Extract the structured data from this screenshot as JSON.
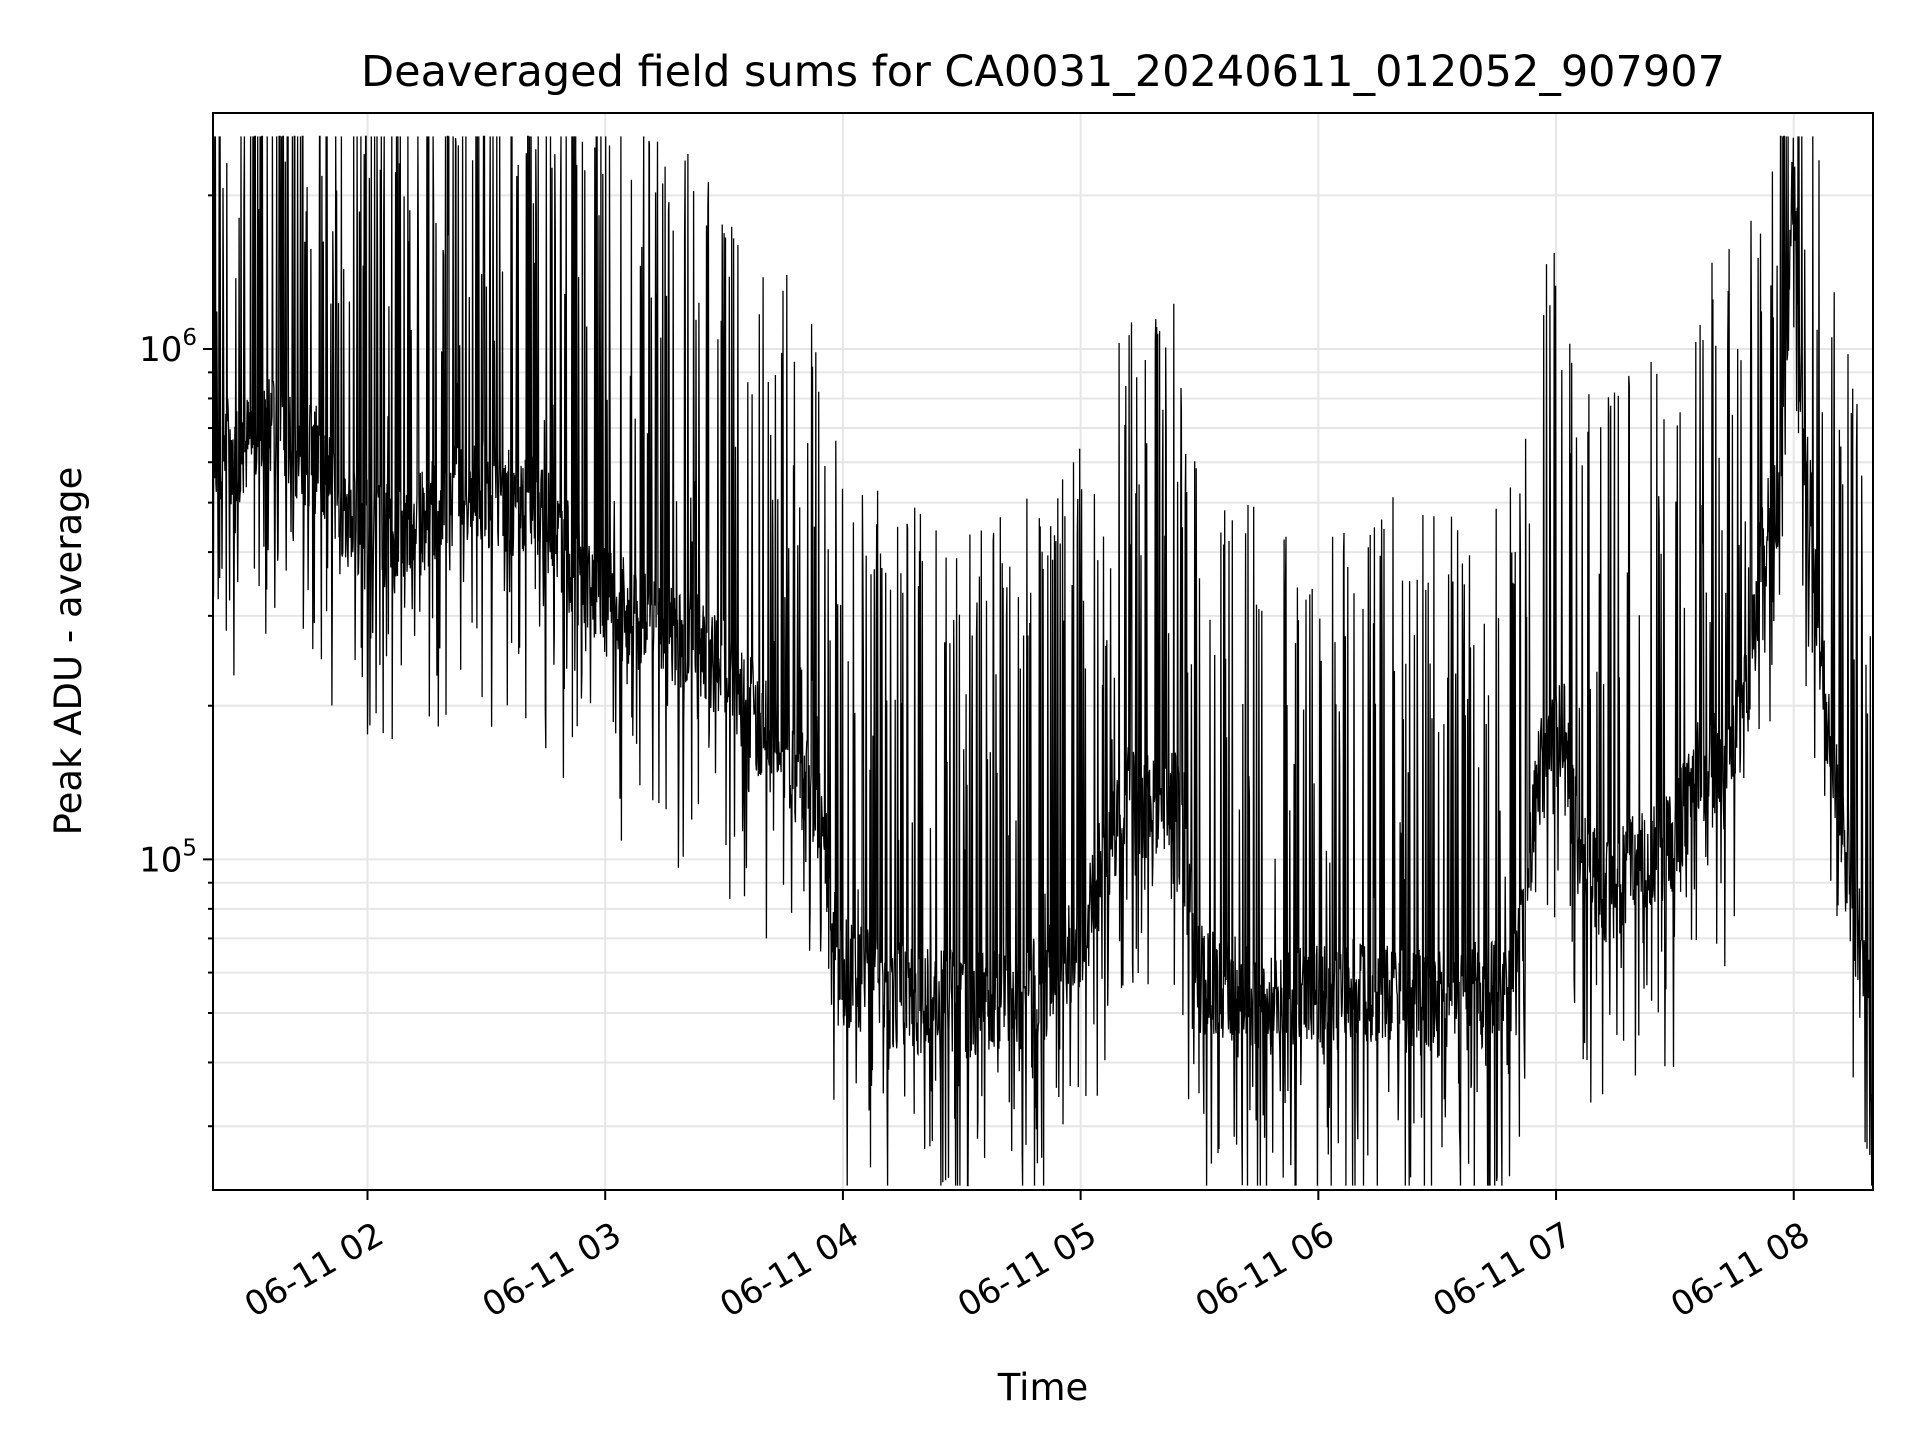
{
  "chart_data": {
    "type": "line",
    "title": "Deaveraged field sums for CA0031_20240611_012052_907907",
    "xlabel": "Time",
    "ylabel": "Peak ADU - average",
    "y_scale": "log",
    "ylim": [
      22500,
      2900000
    ],
    "x_range": [
      "06-11 01:21",
      "06-11 08:20"
    ],
    "x_ticks": [
      "06-11 02",
      "06-11 03",
      "06-11 04",
      "06-11 05",
      "06-11 06",
      "06-11 07",
      "06-11 08"
    ],
    "x_tick_times": [
      "06-11 02:00",
      "06-11 03:00",
      "06-11 04:00",
      "06-11 05:00",
      "06-11 06:00",
      "06-11 07:00",
      "06-11 08:00"
    ],
    "y_major_ticks": [
      {
        "value": 100000,
        "base": "10",
        "exp": "5"
      },
      {
        "value": 1000000,
        "base": "10",
        "exp": "6"
      }
    ],
    "grid": true,
    "line_color": "#000000",
    "grid_color": "#e6e6e6",
    "series": [
      {
        "points": [
          [
            "06-11 01:21",
            620000
          ],
          [
            "06-11 01:30",
            650000
          ],
          [
            "06-11 01:36",
            700000
          ],
          [
            "06-11 01:42",
            650000
          ],
          [
            "06-11 01:48",
            600000
          ],
          [
            "06-11 01:54",
            480000
          ],
          [
            "06-11 02:00",
            450000
          ],
          [
            "06-11 02:06",
            420000
          ],
          [
            "06-11 02:12",
            450000
          ],
          [
            "06-11 02:18",
            500000
          ],
          [
            "06-11 02:24",
            520000
          ],
          [
            "06-11 02:30",
            520000
          ],
          [
            "06-11 02:36",
            500000
          ],
          [
            "06-11 02:42",
            480000
          ],
          [
            "06-11 02:48",
            430000
          ],
          [
            "06-11 02:54",
            350000
          ],
          [
            "06-11 03:00",
            320000
          ],
          [
            "06-11 03:06",
            300000
          ],
          [
            "06-11 03:12",
            280000
          ],
          [
            "06-11 03:18",
            270000
          ],
          [
            "06-11 03:24",
            260000
          ],
          [
            "06-11 03:30",
            240000
          ],
          [
            "06-11 03:36",
            200000
          ],
          [
            "06-11 03:42",
            170000
          ],
          [
            "06-11 03:48",
            150000
          ],
          [
            "06-11 03:54",
            120000
          ],
          [
            "06-11 04:00",
            60000
          ],
          [
            "06-11 04:10",
            55000
          ],
          [
            "06-11 04:20",
            52000
          ],
          [
            "06-11 04:30",
            52000
          ],
          [
            "06-11 04:40",
            54000
          ],
          [
            "06-11 04:50",
            55000
          ],
          [
            "06-11 05:00",
            70000
          ],
          [
            "06-11 05:06",
            100000
          ],
          [
            "06-11 05:12",
            130000
          ],
          [
            "06-11 05:18",
            125000
          ],
          [
            "06-11 05:24",
            130000
          ],
          [
            "06-11 05:30",
            58000
          ],
          [
            "06-11 05:40",
            55000
          ],
          [
            "06-11 05:50",
            52000
          ],
          [
            "06-11 06:00",
            53000
          ],
          [
            "06-11 06:10",
            55000
          ],
          [
            "06-11 06:20",
            54000
          ],
          [
            "06-11 06:30",
            52000
          ],
          [
            "06-11 06:40",
            54000
          ],
          [
            "06-11 06:50",
            58000
          ],
          [
            "06-11 06:56",
            150000
          ],
          [
            "06-11 07:02",
            180000
          ],
          [
            "06-11 07:06",
            100000
          ],
          [
            "06-11 07:12",
            85000
          ],
          [
            "06-11 07:18",
            95000
          ],
          [
            "06-11 07:24",
            100000
          ],
          [
            "06-11 07:30",
            110000
          ],
          [
            "06-11 07:36",
            150000
          ],
          [
            "06-11 07:42",
            160000
          ],
          [
            "06-11 07:48",
            200000
          ],
          [
            "06-11 07:52",
            400000
          ],
          [
            "06-11 07:56",
            500000
          ],
          [
            "06-11 07:59",
            1400000
          ],
          [
            "06-11 08:00",
            2350000
          ],
          [
            "06-11 08:02",
            800000
          ],
          [
            "06-11 08:04",
            500000
          ],
          [
            "06-11 08:07",
            250000
          ],
          [
            "06-11 08:10",
            140000
          ],
          [
            "06-11 08:13",
            115000
          ],
          [
            "06-11 08:16",
            85000
          ],
          [
            "06-11 08:19",
            50000
          ],
          [
            "06-11 08:20",
            27000
          ]
        ]
      }
    ]
  }
}
